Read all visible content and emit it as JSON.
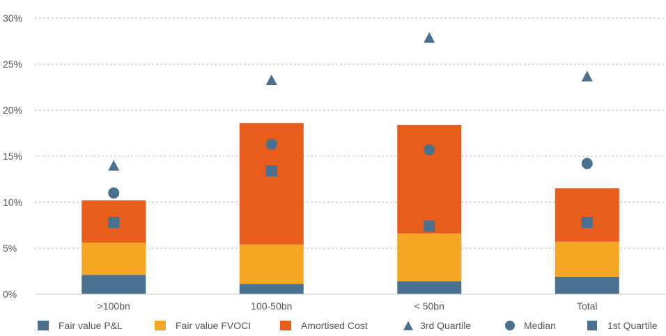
{
  "chart_data": {
    "type": "bar",
    "stacked": true,
    "categories": [
      ">100bn",
      "100-50bn",
      "< 50bn",
      "Total"
    ],
    "series": [
      {
        "name": "Fair value P&L",
        "kind": "bar",
        "color": "#4a7090",
        "values": [
          2.1,
          1.1,
          1.4,
          1.9
        ]
      },
      {
        "name": "Fair value FVOCI",
        "kind": "bar",
        "color": "#f5a623",
        "values": [
          3.5,
          4.3,
          5.2,
          3.8
        ]
      },
      {
        "name": "Amortised Cost",
        "kind": "bar",
        "color": "#e85d1c",
        "values": [
          4.6,
          13.2,
          11.8,
          5.8
        ]
      },
      {
        "name": "3rd Quartile",
        "kind": "marker",
        "marker": "triangle-icon",
        "color": "#4a7090",
        "values": [
          14.0,
          23.3,
          27.9,
          23.7
        ]
      },
      {
        "name": "Median",
        "kind": "marker",
        "marker": "circle-icon",
        "color": "#4a7090",
        "values": [
          11.0,
          16.3,
          15.7,
          14.2
        ]
      },
      {
        "name": "1st Quartile",
        "kind": "marker",
        "marker": "square-icon",
        "color": "#4a7090",
        "values": [
          7.8,
          13.4,
          7.4,
          7.8
        ]
      }
    ],
    "y_ticks": [
      "0%",
      "5%",
      "10%",
      "15%",
      "20%",
      "25%",
      "30%"
    ],
    "ylim": [
      0,
      30
    ],
    "grid": true,
    "legend_position": "bottom"
  }
}
